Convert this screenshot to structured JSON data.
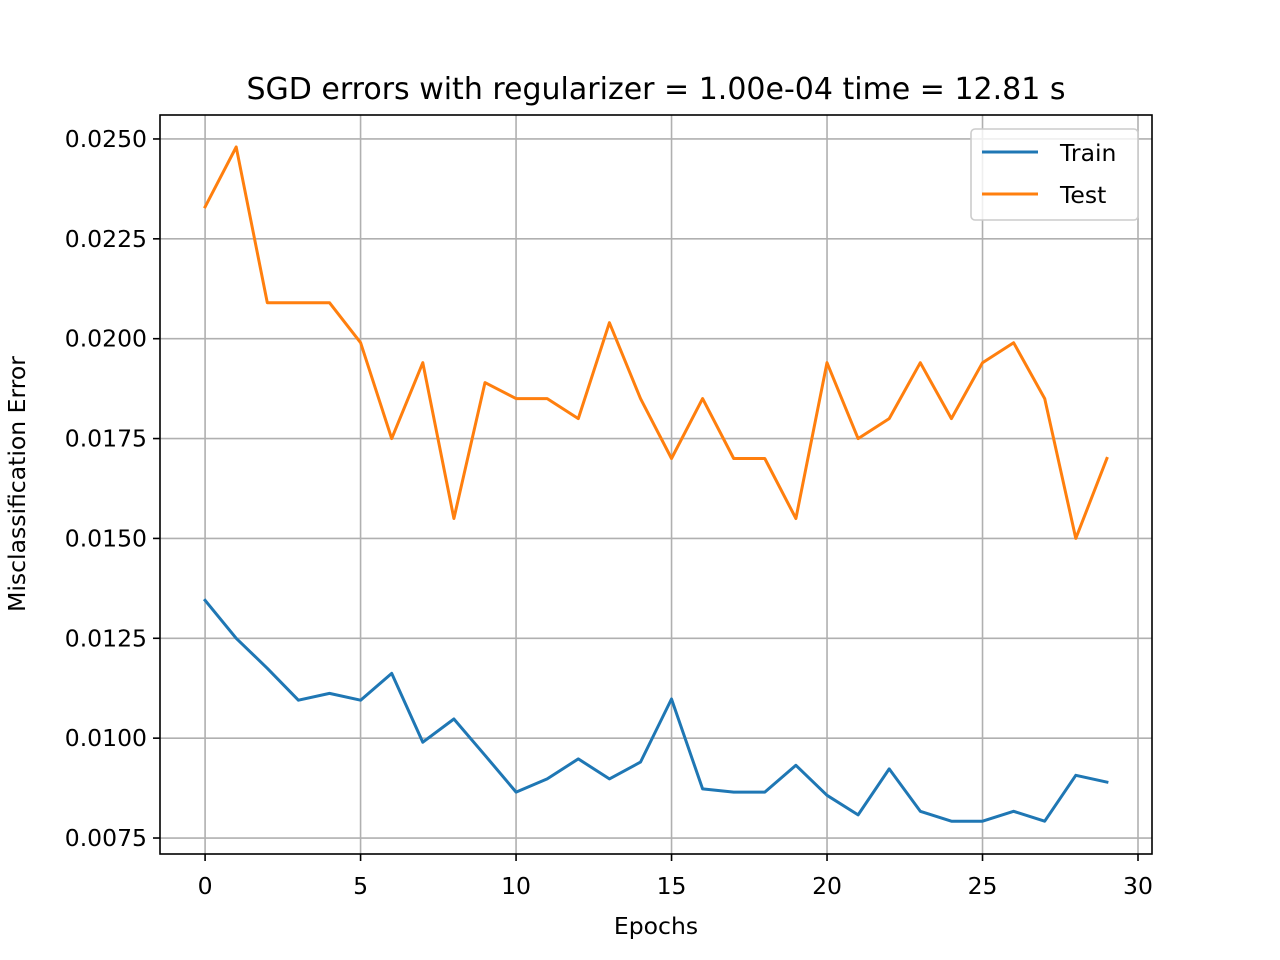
{
  "chart_data": {
    "type": "line",
    "title": "SGD errors with regularizer = 1.00e-04 time = 12.81 s",
    "xlabel": "Epochs",
    "ylabel": "Misclassification Error",
    "xlim": [
      -1.45,
      30.45
    ],
    "ylim": [
      0.0071,
      0.0256
    ],
    "xticks": [
      0,
      5,
      10,
      15,
      20,
      25,
      30
    ],
    "xtick_labels": [
      "0",
      "5",
      "10",
      "15",
      "20",
      "25",
      "30"
    ],
    "yticks": [
      0.0075,
      0.01,
      0.0125,
      0.015,
      0.0175,
      0.02,
      0.0225,
      0.025
    ],
    "ytick_labels": [
      "0.0075",
      "0.0100",
      "0.0125",
      "0.0150",
      "0.0175",
      "0.0200",
      "0.0225",
      "0.0250"
    ],
    "grid": true,
    "legend_position": "top-right",
    "x": [
      0,
      1,
      2,
      3,
      4,
      5,
      6,
      7,
      8,
      9,
      10,
      11,
      12,
      13,
      14,
      15,
      16,
      17,
      18,
      19,
      20,
      21,
      22,
      23,
      24,
      25,
      26,
      27,
      28,
      29
    ],
    "series": [
      {
        "name": "Train",
        "color": "#1f77b4",
        "values": [
          0.01345,
          0.0125,
          0.01175,
          0.01095,
          0.01112,
          0.01095,
          0.01162,
          0.0099,
          0.01048,
          0.00957,
          0.00865,
          0.00898,
          0.00948,
          0.00898,
          0.0094,
          0.01098,
          0.00873,
          0.00865,
          0.00865,
          0.00932,
          0.00857,
          0.00808,
          0.00923,
          0.00817,
          0.00792,
          0.00792,
          0.00817,
          0.00792,
          0.00907,
          0.0089
        ]
      },
      {
        "name": "Test",
        "color": "#ff7f0e",
        "values": [
          0.0233,
          0.0248,
          0.0209,
          0.0209,
          0.0209,
          0.0199,
          0.0175,
          0.0194,
          0.0155,
          0.0189,
          0.0185,
          0.0185,
          0.018,
          0.0204,
          0.0185,
          0.017,
          0.0185,
          0.017,
          0.017,
          0.0155,
          0.0194,
          0.0175,
          0.018,
          0.0194,
          0.018,
          0.0194,
          0.0199,
          0.0185,
          0.015,
          0.017
        ]
      }
    ]
  }
}
